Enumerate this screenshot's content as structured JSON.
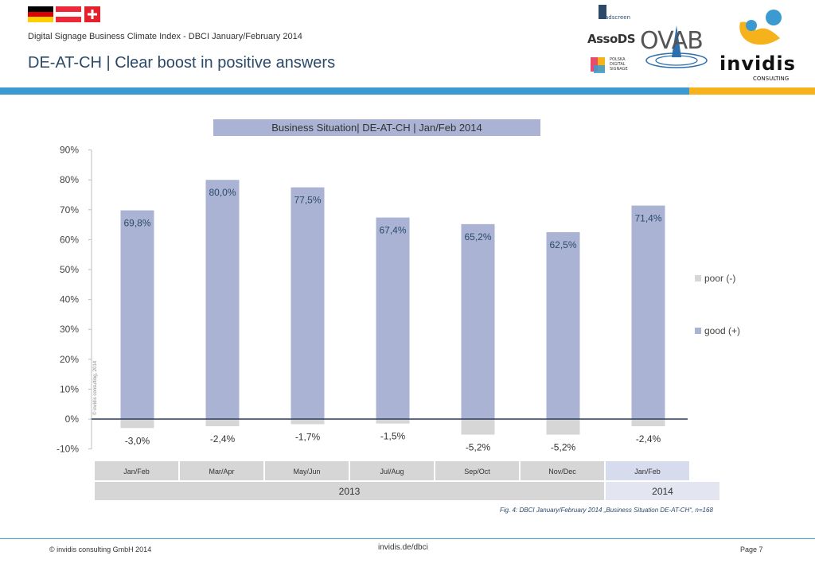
{
  "header": {
    "subtitle": "Digital Signage Business Climate Index - DBCI January/February 2014",
    "title": "DE-AT-CH | Clear boost in positive answers",
    "flags": [
      "germany-flag",
      "austria-flag",
      "switzerland-flag"
    ],
    "logos": {
      "adscreen": "adscreen",
      "assods": "AssoDS",
      "polish": "POLSKA DIGITAL SIGNAGE",
      "ovab": "OVAB",
      "invidis": "invidis",
      "invidis_sub": "CONSULTING"
    }
  },
  "colors": {
    "good": "#aab3d4",
    "poor": "#d6d6d6",
    "accent_blue": "#3b9bd1",
    "accent_yellow": "#f5b21a",
    "title_blue": "#2b4a6a"
  },
  "chart_data": {
    "type": "bar",
    "title": "Business Situation| DE-AT-CH | Jan/Feb 2014",
    "categories": [
      "Jan/Feb",
      "Mar/Apr",
      "May/Jun",
      "Jul/Aug",
      "Sep/Oct",
      "Nov/Dec",
      "Jan/Feb"
    ],
    "years": [
      {
        "label": "2013",
        "span": 6
      },
      {
        "label": "2014",
        "span": 1
      }
    ],
    "series": [
      {
        "name": "good (+)",
        "values": [
          69.8,
          80.0,
          77.5,
          67.4,
          65.2,
          62.5,
          71.4
        ],
        "labels": [
          "69,8%",
          "80,0%",
          "77,5%",
          "67,4%",
          "65,2%",
          "62,5%",
          "71,4%"
        ]
      },
      {
        "name": "poor (-)",
        "values": [
          -3.0,
          -2.4,
          -1.7,
          -1.5,
          -5.2,
          -5.2,
          -2.4
        ],
        "labels": [
          "-3,0%",
          "-2,4%",
          "-1,7%",
          "-1,5%",
          "-5,2%",
          "-5,2%",
          "-2,4%"
        ]
      }
    ],
    "yticks": [
      "90%",
      "80%",
      "70%",
      "60%",
      "50%",
      "40%",
      "30%",
      "20%",
      "10%",
      "0%",
      "-10%"
    ],
    "ylim": [
      -10,
      90
    ],
    "legend": [
      "poor (-)",
      "good (+)"
    ],
    "legend_position": "right",
    "watermark": "© invidis consulting, 2014",
    "caption": "Fig. 4: DBCI January/February 2014 „Business Situation DE-AT-CH“, n=168"
  },
  "footer": {
    "copyright": "© invidis consulting GmbH 2014",
    "url": "invidis.de/dbci",
    "page": "Page 7"
  }
}
